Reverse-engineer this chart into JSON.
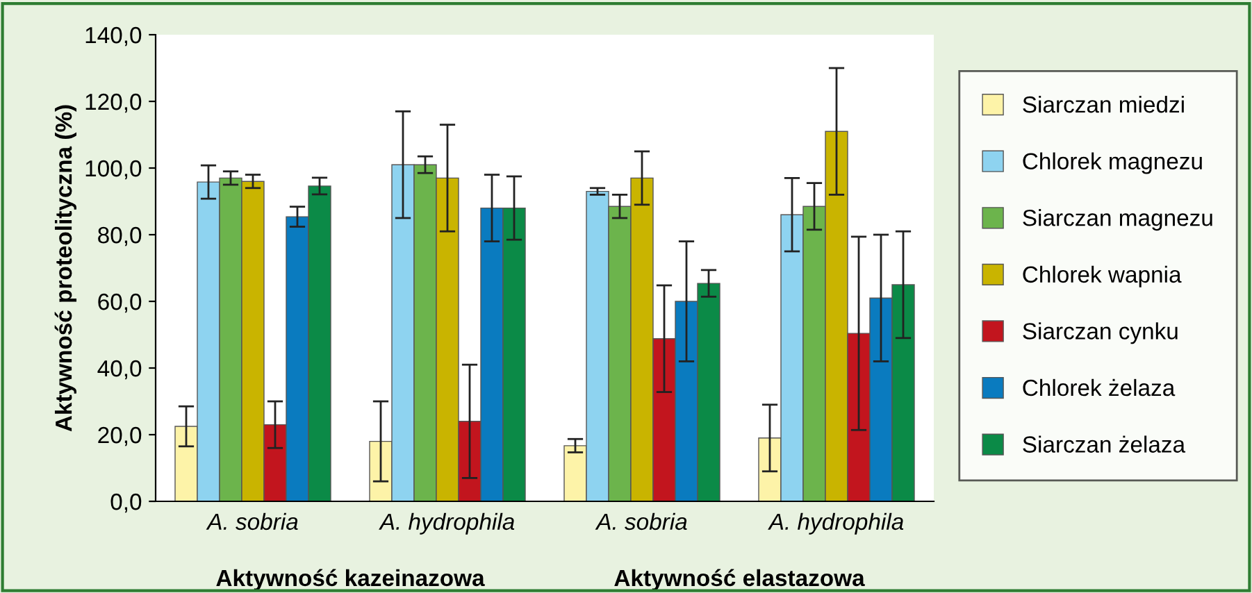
{
  "chart_data": {
    "type": "bar",
    "ylabel": "Aktywność proteolityczna (%)",
    "categories": [
      "A. sobria",
      "A. hydrophila",
      "A. sobria",
      "A. hydrophila"
    ],
    "series": [
      {
        "name": "Siarczan miedzi",
        "color": "#fdf3a8",
        "values": [
          22.5,
          18,
          16.7,
          19
        ],
        "errors": [
          6,
          12,
          2,
          10
        ]
      },
      {
        "name": "Chlorek magnezu",
        "color": "#8ed3f0",
        "values": [
          95.8,
          101,
          93,
          86
        ],
        "errors": [
          5,
          16,
          1,
          11
        ]
      },
      {
        "name": "Siarczan magnezu",
        "color": "#6cb44c",
        "values": [
          97,
          101,
          88.5,
          88.5
        ],
        "errors": [
          2,
          2.5,
          3.5,
          7
        ]
      },
      {
        "name": "Chlorek wapnia",
        "color": "#c9b400",
        "values": [
          96,
          97,
          97,
          111
        ],
        "errors": [
          2,
          16,
          8,
          19
        ]
      },
      {
        "name": "Siarczan cynku",
        "color": "#c2151e",
        "values": [
          23,
          24,
          48.8,
          50.4
        ],
        "errors": [
          7,
          17,
          16,
          29
        ]
      },
      {
        "name": "Chlorek żelaza",
        "color": "#0a7bbf",
        "values": [
          85.4,
          88,
          60,
          61
        ],
        "errors": [
          3,
          10,
          18,
          19
        ]
      },
      {
        "name": "Siarczan żelaza",
        "color": "#0b8a47",
        "values": [
          94.6,
          88,
          65.4,
          65
        ],
        "errors": [
          2.5,
          9.5,
          4,
          16
        ]
      }
    ],
    "ylim": [
      0,
      140
    ],
    "yticks": [
      {
        "value": 0,
        "label": "0,0"
      },
      {
        "value": 20,
        "label": "20,0"
      },
      {
        "value": 40,
        "label": "40,0"
      },
      {
        "value": 60,
        "label": "60,0"
      },
      {
        "value": 80,
        "label": "80,0"
      },
      {
        "value": 100,
        "label": "100,0"
      },
      {
        "value": 120,
        "label": "120,0"
      },
      {
        "value": 140,
        "label": "140,0"
      }
    ],
    "annotations": [
      "Aktywność kazeinazowa",
      "Aktywność elastazowa"
    ],
    "legend": "right",
    "grid": false
  }
}
